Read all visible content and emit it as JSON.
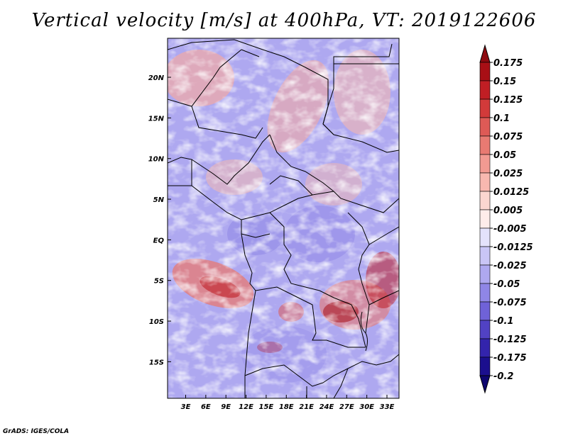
{
  "title": "Vertical velocity [m/s] at 400hPa, VT: 2019122606",
  "credit": "GrADS: IGES/COLA",
  "map": {
    "lat_ticks": [
      {
        "label": "20N",
        "value": 20
      },
      {
        "label": "15N",
        "value": 15
      },
      {
        "label": "10N",
        "value": 10
      },
      {
        "label": "5N",
        "value": 5
      },
      {
        "label": "EQ",
        "value": 0
      },
      {
        "label": "5S",
        "value": -5
      },
      {
        "label": "10S",
        "value": -10
      },
      {
        "label": "15S",
        "value": -15
      }
    ],
    "lon_ticks": [
      {
        "label": "3E",
        "value": 3
      },
      {
        "label": "6E",
        "value": 6
      },
      {
        "label": "9E",
        "value": 9
      },
      {
        "label": "12E",
        "value": 12
      },
      {
        "label": "15E",
        "value": 15
      },
      {
        "label": "18E",
        "value": 18
      },
      {
        "label": "21E",
        "value": 21
      },
      {
        "label": "24E",
        "value": 24
      },
      {
        "label": "27E",
        "value": 27
      },
      {
        "label": "30E",
        "value": 30
      },
      {
        "label": "33E",
        "value": 33
      }
    ],
    "lon_range": [
      0.3,
      34.8
    ],
    "lat_range": [
      -19.5,
      24.8
    ]
  },
  "colorbar": {
    "levels": [
      {
        "label": "0.175",
        "color": "#a80f15"
      },
      {
        "label": "0.15",
        "color": "#c01e24"
      },
      {
        "label": "0.125",
        "color": "#d23a3a"
      },
      {
        "label": "0.1",
        "color": "#de5a56"
      },
      {
        "label": "0.075",
        "color": "#e87a72"
      },
      {
        "label": "0.05",
        "color": "#f29a92"
      },
      {
        "label": "0.025",
        "color": "#f8b8b0"
      },
      {
        "label": "0.0125",
        "color": "#fbd6d0"
      },
      {
        "label": "0.005",
        "color": "#feecea"
      },
      {
        "label": "-0.005",
        "color": "#ffffff"
      },
      {
        "label": "-0.0125",
        "color": "#e4e2fb"
      },
      {
        "label": "-0.025",
        "color": "#c9c5f6"
      },
      {
        "label": "-0.05",
        "color": "#aea8f0"
      },
      {
        "label": "-0.075",
        "color": "#8f86e6"
      },
      {
        "label": "-0.1",
        "color": "#6f62d8"
      },
      {
        "label": "-0.125",
        "color": "#5142c4"
      },
      {
        "label": "-0.175",
        "color": "#3324ac"
      },
      {
        "label": "-0.2",
        "color": "#1b0f8e"
      }
    ],
    "top_arrow_color": "#8e0a10",
    "bottom_arrow_color": "#0e0670"
  }
}
